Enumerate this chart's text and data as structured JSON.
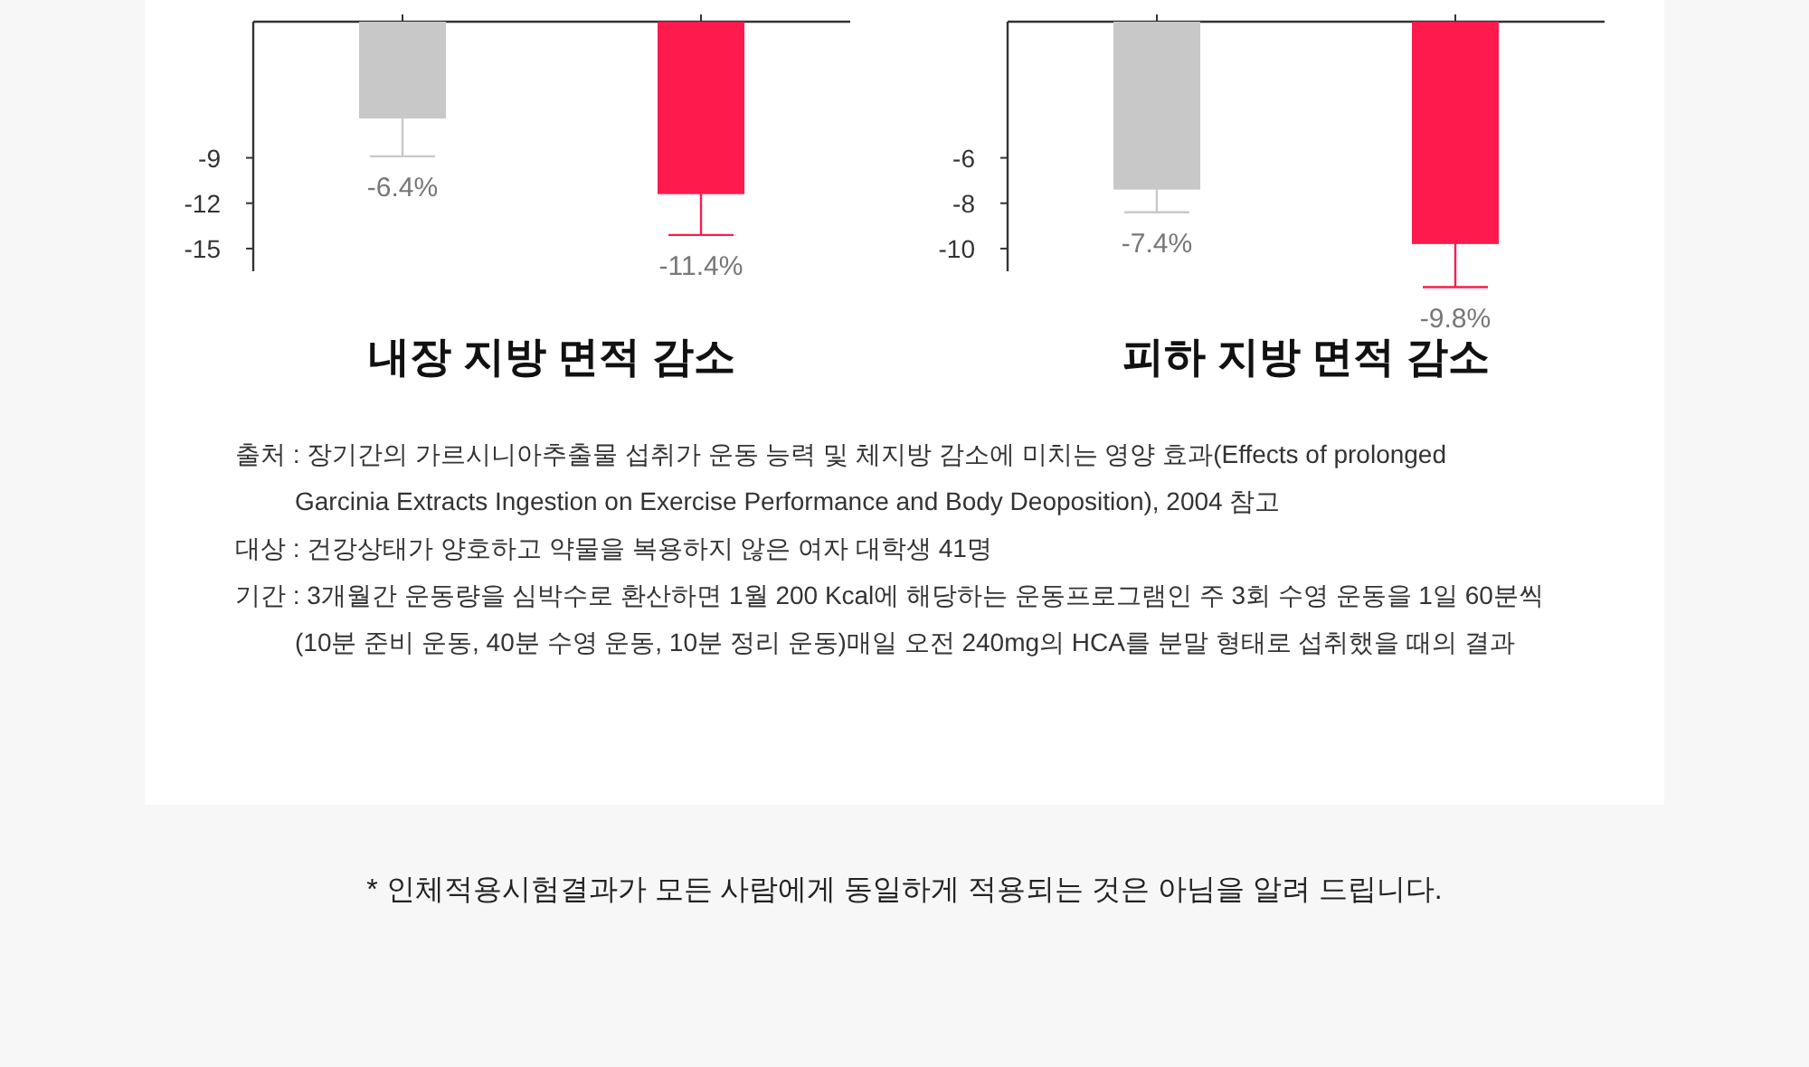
{
  "chart_data": [
    {
      "type": "bar",
      "title": "내장 지방 면적 감소",
      "categories": [
        null,
        null
      ],
      "values": [
        -6.4,
        -11.4
      ],
      "colors": [
        "#c8c8c8",
        "#ff1a4e"
      ],
      "errors": [
        2.5,
        2.7
      ],
      "value_labels": [
        "-6.4%",
        "-11.4%"
      ],
      "ylim": [
        -16.5,
        0
      ],
      "yticks": [
        -9,
        -12,
        -15
      ]
    },
    {
      "type": "bar",
      "title": "피하 지방 면적 감소",
      "categories": [
        null,
        null
      ],
      "values": [
        -7.4,
        -9.8
      ],
      "colors": [
        "#c8c8c8",
        "#ff1a4e"
      ],
      "errors": [
        1.0,
        1.9
      ],
      "value_labels": [
        "-7.4%",
        "-9.8%"
      ],
      "ylim": [
        -11,
        0
      ],
      "yticks": [
        -6,
        -8,
        -10
      ]
    },
    {
      "type": "other",
      "annotations": [
        "출처 : 장기간의 가르시니아추출물 섭취가 운동 능력 및 체지방 감소에 미치는 영양 효과(Effects of prolonged Garcinia Extracts Ingestion on Exercise Performance and Body Deoposition), 2004 참고",
        "대상 : 건강상태가 양호하고 약물을 복용하지 않은 여자 대학생 41명",
        "기간 : 3개월간 운동량을 심박수로 환산하면 1월 200 Kcal에 해당하는 운동프로그램인 주 3회 수영 운동을 1일 60분씩 (10분 준비 운동, 40분 수영 운동, 10분 정리 운동)매일 오전 240mg의 HCA를 분말 형태로 섭취했을 때의 결과"
      ]
    },
    {
      "type": "other",
      "annotations": [
        "* 인체적용시험결과가 모든 사람에게 동일하게 적용되는 것은 아님을 알려 드립니다."
      ]
    }
  ]
}
